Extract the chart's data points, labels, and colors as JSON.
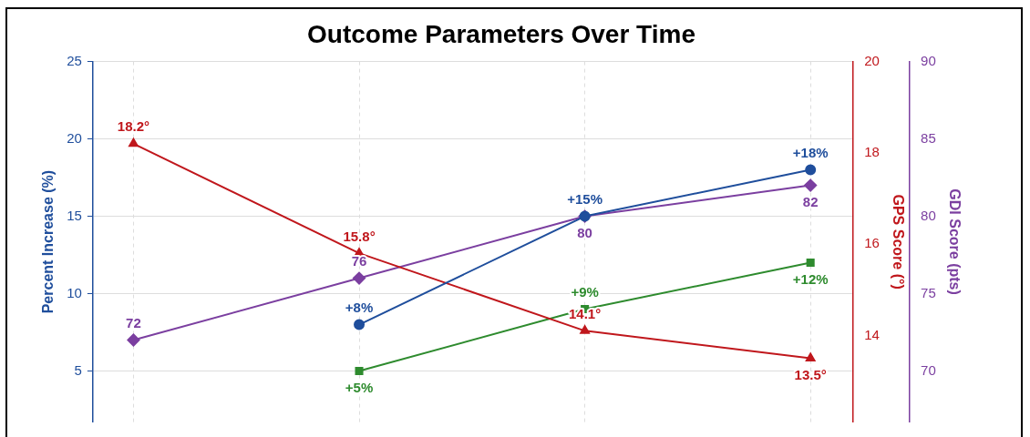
{
  "chart_data": {
    "type": "line",
    "title": "Outcome Parameters Over Time",
    "ylabel": "Percent Increase (%)",
    "y2label": "GPS Score (°)",
    "y3label": "GDI Score (pts)",
    "categories": [
      null,
      null,
      null,
      null
    ],
    "ylim": [
      1.7,
      25
    ],
    "yticks": [
      5,
      10,
      15,
      20,
      25
    ],
    "y2lim": [
      12.1,
      20
    ],
    "y2ticks": [
      14,
      16,
      18,
      20
    ],
    "y3lim": [
      66.7,
      90
    ],
    "y3ticks": [
      70,
      75,
      80,
      85,
      90
    ],
    "grid": true,
    "legend": false,
    "series": [
      {
        "color": "#1f4e9c",
        "axis": "y",
        "marker": "circle",
        "values": [
          null,
          8,
          15,
          18
        ],
        "value_labels": [
          null,
          "+8%",
          "+15%",
          "+18%"
        ]
      },
      {
        "color": "#c0171c",
        "axis": "y2",
        "marker": "triangle",
        "values": [
          18.2,
          15.8,
          14.1,
          13.5
        ],
        "value_labels": [
          "18.2°",
          "15.8°",
          "14.1°",
          "13.5°"
        ]
      },
      {
        "color": "#2e8b2e",
        "axis": "y",
        "marker": "square",
        "values": [
          null,
          5,
          9,
          12
        ],
        "value_labels": [
          null,
          "+5%",
          "+9%",
          "+12%"
        ]
      },
      {
        "color": "#7b3fa0",
        "axis": "y3",
        "marker": "diamond",
        "values": [
          72,
          76,
          80,
          82
        ],
        "value_labels": [
          "72",
          "76",
          "80",
          "82"
        ]
      }
    ]
  }
}
